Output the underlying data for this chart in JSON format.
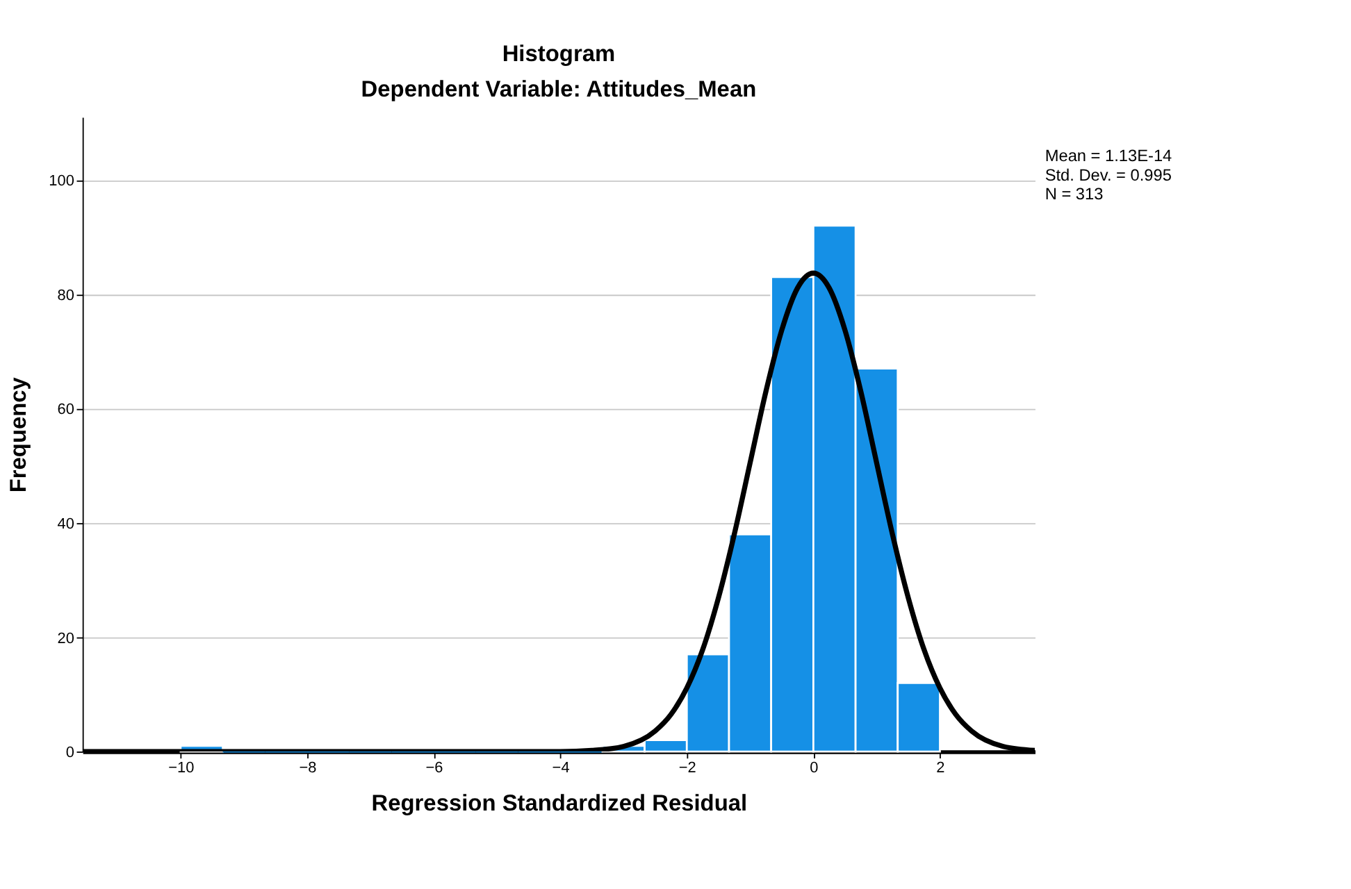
{
  "chart_data": {
    "type": "histogram",
    "title": "Histogram",
    "subtitle": "Dependent Variable: Attitudes_Mean",
    "xlabel": "Regression Standardized Residual",
    "ylabel": "Frequency",
    "bins": [
      -10,
      -9.333,
      -8.667,
      -8,
      -7.333,
      -6.667,
      -6,
      -5.333,
      -4.667,
      -4,
      -3.333,
      -2.667,
      -2,
      -1.333,
      -0.667,
      0,
      0.667,
      1.333,
      2
    ],
    "values": [
      1,
      0,
      0,
      0,
      0,
      0,
      0,
      0,
      0,
      0,
      1,
      2,
      17,
      38,
      83,
      92,
      67,
      12
    ],
    "color": "#1590e6",
    "series": [
      {
        "type": "line",
        "color": "#000000",
        "x": [
          -11.55,
          -6,
          -4.5,
          -4,
          -3.5,
          -3,
          -2.5,
          -2.25,
          -2,
          -1.75,
          -1.5,
          -1.25,
          -1,
          -0.75,
          -0.5,
          -0.25,
          0,
          0.25,
          0.5,
          0.75,
          1,
          1.25,
          1.5,
          1.75,
          2,
          2.25,
          2.5,
          3,
          3.5
        ],
        "values": [
          0,
          0,
          0,
          0,
          0.2,
          0.9,
          3.6,
          6.5,
          11.1,
          17.8,
          26.9,
          38.0,
          50.5,
          63.0,
          73.7,
          81.1,
          83.7,
          81.1,
          73.7,
          63.0,
          50.5,
          38.0,
          26.9,
          17.8,
          11.1,
          6.5,
          3.6,
          0.9,
          0.2
        ]
      }
    ],
    "xlim": [
      -11.55,
      3.5
    ],
    "ylim": [
      0,
      111
    ],
    "xticks": [
      -10,
      -8,
      -6,
      -4,
      -2,
      0,
      2
    ],
    "yticks": [
      0,
      20,
      40,
      60,
      80,
      100
    ],
    "grid": "y",
    "annotations": [
      "Mean = 1.13E-14",
      "Std. Dev. = 0.995",
      "N = 313"
    ]
  }
}
